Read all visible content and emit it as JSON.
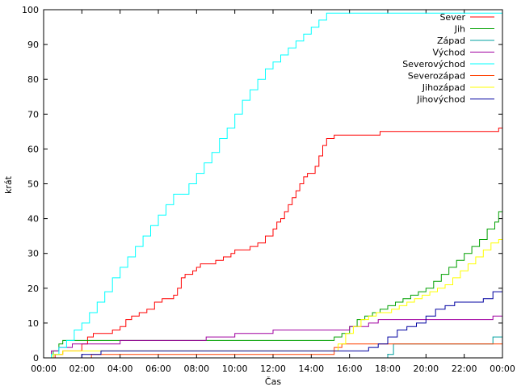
{
  "chart_data": {
    "type": "line",
    "title": "",
    "xlabel": "Čas",
    "ylabel": "krát",
    "xlim": [
      0,
      24
    ],
    "ylim": [
      0,
      100
    ],
    "x_ticks": [
      "00:00",
      "02:00",
      "04:00",
      "06:00",
      "08:00",
      "10:00",
      "12:00",
      "14:00",
      "16:00",
      "18:00",
      "20:00",
      "22:00",
      "00:00"
    ],
    "y_ticks": [
      0,
      10,
      20,
      30,
      40,
      50,
      60,
      70,
      80,
      90,
      100
    ],
    "grid": false,
    "legend_position": "top-right",
    "series": [
      {
        "name": "Sever",
        "color": "#ff0000",
        "x": [
          0,
          0.3,
          0.6,
          1.0,
          1.6,
          2.0,
          2.3,
          2.6,
          3.0,
          3.6,
          4.0,
          4.3,
          4.6,
          5.0,
          5.4,
          5.8,
          6.2,
          6.8,
          7.0,
          7.2,
          7.4,
          7.8,
          8.0,
          8.2,
          8.6,
          9.0,
          9.4,
          9.8,
          10.0,
          10.4,
          10.8,
          11.2,
          11.6,
          12.0,
          12.2,
          12.4,
          12.6,
          12.8,
          13.0,
          13.2,
          13.4,
          13.6,
          13.8,
          14.0,
          14.2,
          14.4,
          14.6,
          14.8,
          15.2,
          16.0,
          17.0,
          17.6,
          18.0,
          19.0,
          20.0,
          21.0,
          22.0,
          23.0,
          23.8,
          24.0
        ],
        "y": [
          0,
          0,
          1,
          2,
          2,
          4,
          6,
          7,
          7,
          8,
          9,
          11,
          12,
          13,
          14,
          16,
          17,
          18,
          20,
          23,
          24,
          25,
          26,
          27,
          27,
          28,
          29,
          30,
          31,
          31,
          32,
          33,
          35,
          37,
          39,
          40,
          42,
          44,
          46,
          48,
          50,
          52,
          53,
          53,
          55,
          58,
          61,
          63,
          64,
          64,
          64,
          65,
          65,
          65,
          65,
          65,
          65,
          65,
          66,
          66
        ]
      },
      {
        "name": "Jih",
        "color": "#00a000",
        "x": [
          0,
          0.2,
          0.5,
          0.8,
          1.0,
          2.0,
          4.0,
          8.0,
          12.0,
          15.0,
          15.2,
          15.6,
          16.0,
          16.4,
          16.8,
          17.2,
          17.6,
          18.0,
          18.4,
          18.8,
          19.2,
          19.6,
          20.0,
          20.4,
          20.8,
          21.2,
          21.6,
          22.0,
          22.4,
          22.8,
          23.2,
          23.6,
          23.8,
          24.0
        ],
        "y": [
          0,
          0,
          2,
          4,
          5,
          5,
          5,
          5,
          5,
          5,
          6,
          7,
          9,
          11,
          12,
          13,
          14,
          15,
          16,
          17,
          18,
          19,
          20,
          22,
          24,
          26,
          28,
          30,
          32,
          34,
          37,
          39,
          42,
          43
        ]
      },
      {
        "name": "Západ",
        "color": "#00a0a0",
        "x": [
          0,
          1.0,
          4.0,
          8.0,
          12.0,
          15.0,
          16.0,
          17.0,
          18.0,
          18.3,
          19.0,
          20.0,
          21.0,
          22.0,
          23.0,
          23.5,
          24.0
        ],
        "y": [
          0,
          0,
          0,
          0,
          0,
          0,
          0,
          0,
          1,
          4,
          4,
          4,
          4,
          4,
          4,
          6,
          6
        ]
      },
      {
        "name": "Východ",
        "color": "#a000a0",
        "x": [
          0,
          0.4,
          0.8,
          1.5,
          2.0,
          3.0,
          4.0,
          5.0,
          6.0,
          7.0,
          8.0,
          8.5,
          9.0,
          10.0,
          11.0,
          12.0,
          13.0,
          14.0,
          15.0,
          16.0,
          17.0,
          17.5,
          18.0,
          19.0,
          20.0,
          21.0,
          22.0,
          23.0,
          23.5,
          24.0
        ],
        "y": [
          0,
          2,
          3,
          4,
          4,
          4,
          5,
          5,
          5,
          5,
          5,
          6,
          6,
          7,
          7,
          8,
          8,
          8,
          8,
          9,
          10,
          11,
          11,
          11,
          11,
          11,
          11,
          11,
          12,
          12
        ]
      },
      {
        "name": "Severovýchod",
        "color": "#00ffff",
        "x": [
          0,
          0.4,
          0.8,
          1.2,
          1.6,
          2.0,
          2.4,
          2.8,
          3.2,
          3.6,
          4.0,
          4.4,
          4.8,
          5.2,
          5.6,
          6.0,
          6.4,
          6.8,
          7.2,
          7.6,
          8.0,
          8.4,
          8.8,
          9.2,
          9.6,
          10.0,
          10.4,
          10.8,
          11.2,
          11.6,
          12.0,
          12.4,
          12.8,
          13.2,
          13.6,
          14.0,
          14.4,
          14.8,
          15.0,
          16.0,
          18.0,
          20.0,
          22.0,
          24.0
        ],
        "y": [
          0,
          1,
          3,
          5,
          8,
          10,
          13,
          16,
          19,
          23,
          26,
          29,
          32,
          35,
          38,
          41,
          44,
          47,
          47,
          50,
          53,
          56,
          59,
          63,
          66,
          70,
          74,
          77,
          80,
          83,
          85,
          87,
          89,
          91,
          93,
          95,
          97,
          99,
          99,
          99,
          99,
          99,
          99,
          99
        ]
      },
      {
        "name": "Severozápad",
        "color": "#ff4000",
        "x": [
          0,
          1.0,
          2.0,
          2.5,
          4.0,
          8.0,
          12.0,
          15.0,
          15.2,
          15.6,
          16.0,
          18.0,
          20.0,
          22.0,
          24.0
        ],
        "y": [
          0,
          0,
          0,
          1,
          1,
          1,
          1,
          1,
          3,
          4,
          4,
          4,
          4,
          4,
          4
        ]
      },
      {
        "name": "Jihozápad",
        "color": "#ffff00",
        "x": [
          0,
          0.5,
          1.0,
          2.0,
          4.0,
          8.0,
          12.0,
          15.0,
          15.4,
          15.8,
          16.2,
          16.6,
          17.0,
          17.4,
          17.8,
          18.2,
          18.6,
          19.0,
          19.4,
          19.8,
          20.2,
          20.6,
          21.0,
          21.4,
          21.8,
          22.2,
          22.6,
          23.0,
          23.4,
          23.8,
          24.0
        ],
        "y": [
          0,
          1,
          2,
          2,
          2,
          2,
          2,
          2,
          4,
          7,
          9,
          11,
          12,
          13,
          13,
          14,
          15,
          16,
          17,
          18,
          19,
          20,
          21,
          23,
          25,
          27,
          29,
          31,
          33,
          34,
          35
        ]
      },
      {
        "name": "Jihovýchod",
        "color": "#0000a0",
        "x": [
          0,
          1.0,
          2.0,
          3.0,
          4.0,
          8.0,
          12.0,
          15.0,
          16.0,
          16.5,
          17.0,
          17.5,
          18.0,
          18.5,
          19.0,
          19.5,
          20.0,
          20.5,
          21.0,
          21.5,
          22.0,
          22.5,
          23.0,
          23.5,
          24.0
        ],
        "y": [
          0,
          0,
          1,
          2,
          2,
          2,
          2,
          2,
          2,
          2,
          3,
          4,
          6,
          8,
          9,
          10,
          12,
          14,
          15,
          16,
          16,
          16,
          17,
          19,
          19
        ]
      }
    ]
  }
}
